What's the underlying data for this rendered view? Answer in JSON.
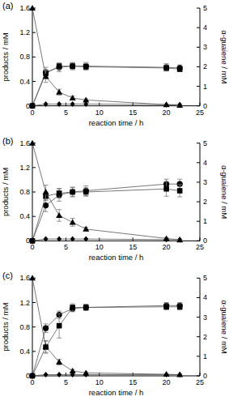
{
  "chart_data": [
    {
      "type": "line",
      "title": "(a)",
      "x_label": "reaction time / h",
      "y_label": "products / mM",
      "y2_label": "α-guaiene / mM",
      "x": [
        0,
        2,
        4,
        6,
        8,
        20,
        22
      ],
      "xlim": [
        0,
        25
      ],
      "xticks": [
        0,
        5,
        10,
        15,
        20,
        25
      ],
      "ylim": [
        0,
        1.6
      ],
      "yticks": [
        0,
        0.4,
        0.8,
        1.2,
        1.6
      ],
      "y2lim": [
        0,
        5
      ],
      "y2ticks": [
        0,
        1,
        2,
        3,
        4,
        5
      ],
      "series": [
        {
          "marker": "circle",
          "color": "#000000",
          "values": [
            0,
            0.55,
            0.63,
            0.65,
            0.65,
            0.63,
            0.62
          ],
          "errors": [
            0,
            0.08,
            0.07,
            0.06,
            0.06,
            0.06,
            0.05
          ]
        },
        {
          "marker": "square",
          "color": "#000000",
          "values": [
            0,
            0.53,
            0.65,
            0.65,
            0.64,
            0.62,
            0.6
          ],
          "errors": [
            0,
            0.06,
            0.05,
            0.05,
            0.05,
            0.05,
            0.04
          ]
        },
        {
          "marker": "diamond",
          "color": "#000000",
          "values": [
            0,
            0.03,
            0.03,
            0.03,
            0.03,
            0.02,
            0.02
          ],
          "errors": [
            0,
            0,
            0,
            0,
            0,
            0,
            0
          ]
        },
        {
          "marker": "triangle",
          "color": "#000000",
          "axis": "y2",
          "values": [
            5,
            1.5,
            0.7,
            0.4,
            0.3,
            0.06,
            0.03
          ],
          "errors": [
            0,
            0.3,
            0.15,
            0.1,
            0.05,
            0.03,
            0.02
          ]
        }
      ]
    },
    {
      "type": "line",
      "title": "(b)",
      "x_label": "reaction time / h",
      "y_label": "products / mM",
      "y2_label": "α-guaiene / mM",
      "x": [
        0,
        2,
        4,
        6,
        8,
        20,
        22
      ],
      "xlim": [
        0,
        25
      ],
      "xticks": [
        0,
        5,
        10,
        15,
        20,
        25
      ],
      "ylim": [
        0,
        1.6
      ],
      "yticks": [
        0,
        0.4,
        0.8,
        1.2,
        1.6
      ],
      "y2lim": [
        0,
        5
      ],
      "y2ticks": [
        0,
        1,
        2,
        3,
        4,
        5
      ],
      "series": [
        {
          "marker": "circle",
          "color": "#000000",
          "values": [
            0,
            0.58,
            0.75,
            0.8,
            0.82,
            0.93,
            0.93
          ],
          "errors": [
            0,
            0.1,
            0.1,
            0.08,
            0.08,
            0.08,
            0.08
          ]
        },
        {
          "marker": "square",
          "color": "#000000",
          "values": [
            0,
            0.73,
            0.78,
            0.8,
            0.8,
            0.85,
            0.82
          ],
          "errors": [
            0,
            0.07,
            0.08,
            0.07,
            0.07,
            0.12,
            0.1
          ]
        },
        {
          "marker": "diamond",
          "color": "#000000",
          "values": [
            0,
            0.03,
            0.03,
            0.03,
            0.03,
            0.02,
            0.02
          ],
          "errors": [
            0,
            0,
            0,
            0,
            0,
            0,
            0
          ]
        },
        {
          "marker": "triangle",
          "color": "#000000",
          "axis": "y2",
          "values": [
            5,
            2.5,
            1.3,
            0.95,
            0.6,
            0.12,
            0.05
          ],
          "errors": [
            0,
            0.35,
            0.3,
            0.2,
            0.1,
            0.05,
            0.03
          ]
        }
      ]
    },
    {
      "type": "line",
      "title": "(c)",
      "x_label": "reaction time / h",
      "y_label": "products / mM",
      "y2_label": "α-guaiene / mM",
      "x": [
        0,
        2,
        4,
        6,
        8,
        20,
        22
      ],
      "xlim": [
        0,
        25
      ],
      "xticks": [
        0,
        5,
        10,
        15,
        20,
        25
      ],
      "ylim": [
        0,
        1.6
      ],
      "yticks": [
        0,
        0.4,
        0.8,
        1.2,
        1.6
      ],
      "y2lim": [
        0,
        5
      ],
      "y2ticks": [
        0,
        1,
        2,
        3,
        4,
        5
      ],
      "series": [
        {
          "marker": "circle",
          "color": "#000000",
          "values": [
            0,
            0.78,
            1.0,
            1.1,
            1.12,
            1.15,
            1.15
          ],
          "errors": [
            0,
            0.07,
            0.06,
            0.05,
            0.05,
            0.05,
            0.05
          ]
        },
        {
          "marker": "square",
          "color": "#000000",
          "values": [
            0,
            0.47,
            0.82,
            1.12,
            1.12,
            1.13,
            1.13
          ],
          "errors": [
            0,
            0.1,
            0.2,
            0.06,
            0.05,
            0.05,
            0.05
          ]
        },
        {
          "marker": "diamond",
          "color": "#000000",
          "values": [
            0,
            0.02,
            0.02,
            0.02,
            0.02,
            0.02,
            0.02
          ],
          "errors": [
            0,
            0,
            0,
            0,
            0,
            0,
            0
          ]
        },
        {
          "marker": "triangle",
          "color": "#000000",
          "axis": "y2",
          "values": [
            5,
            1.5,
            0.7,
            0.25,
            0.15,
            0.08,
            0.06
          ],
          "errors": [
            0,
            0.3,
            0.15,
            0.08,
            0.05,
            0.03,
            0.02
          ]
        }
      ]
    }
  ]
}
